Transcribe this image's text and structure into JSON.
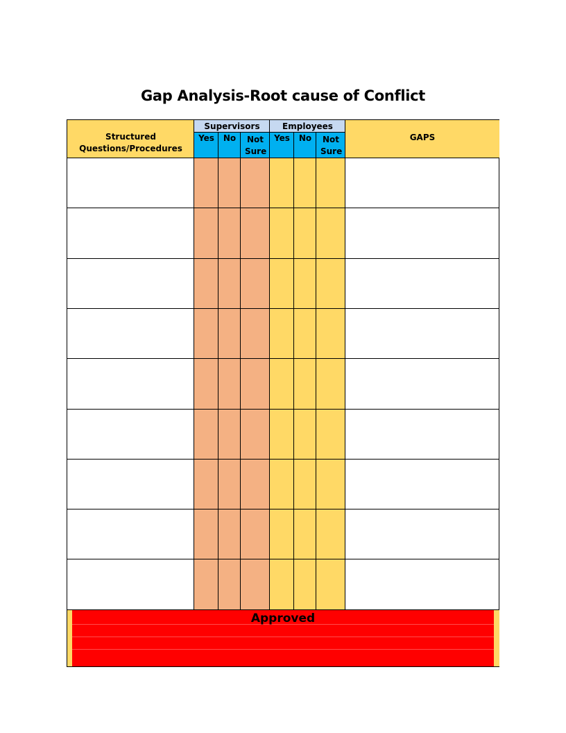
{
  "title": "Gap Analysis-Root cause of Conflict",
  "header": {
    "questions": "Structured Questions/Procedures",
    "supervisors": "Supervisors",
    "employees": "Employees",
    "gaps": "GAPS",
    "yes": "Yes",
    "no": "No",
    "not_sure": "Not Sure"
  },
  "rows": [
    {
      "question": "",
      "gap": ""
    },
    {
      "question": "",
      "gap": ""
    },
    {
      "question": "",
      "gap": ""
    },
    {
      "question": "",
      "gap": ""
    },
    {
      "question": "",
      "gap": ""
    },
    {
      "question": "",
      "gap": ""
    },
    {
      "question": "",
      "gap": ""
    },
    {
      "question": "",
      "gap": ""
    },
    {
      "question": "",
      "gap": ""
    }
  ],
  "footer": {
    "approved": "Approved"
  },
  "colors": {
    "header_yellow": "#ffd966",
    "header_blue": "#c6d9f1",
    "header_cyan": "#00b0f0",
    "supervisor_column": "#f4b183",
    "employee_column": "#ffd966",
    "approved_band": "#ff0000"
  }
}
